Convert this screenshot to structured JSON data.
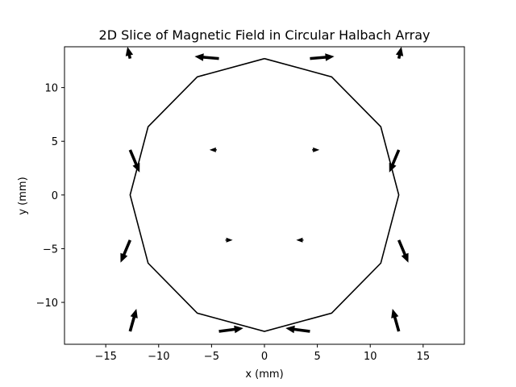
{
  "chart_data": {
    "type": "quiver",
    "title": "2D Slice of Magnetic Field in Circular Halbach Array",
    "xlabel": "x (mm)",
    "ylabel": "y (mm)",
    "xlim": [
      -18.9,
      18.9
    ],
    "ylim": [
      -13.9,
      13.8
    ],
    "xticks": [
      -15,
      -10,
      -5,
      0,
      5,
      10,
      15
    ],
    "yticks": [
      -10,
      -5,
      0,
      5,
      10
    ],
    "grid": false,
    "polygon": {
      "x": [
        0,
        6.35,
        11.0,
        12.7,
        11.0,
        6.35,
        0,
        -6.35,
        -11.0,
        -12.7,
        -11.0,
        -6.35,
        0
      ],
      "y": [
        12.7,
        11.0,
        6.35,
        0,
        -6.35,
        -11.0,
        -12.7,
        -11.0,
        -6.35,
        0,
        6.35,
        11.0,
        12.7
      ]
    },
    "outer_arrows": [
      {
        "x": 12.7,
        "y": 12.7,
        "u": 0.25,
        "v": 1.1
      },
      {
        "x": 4.3,
        "y": 12.7,
        "u": 2.3,
        "v": 0.2
      },
      {
        "x": -4.3,
        "y": 12.7,
        "u": -2.3,
        "v": 0.2
      },
      {
        "x": -12.7,
        "y": 12.7,
        "u": -0.25,
        "v": 1.1
      },
      {
        "x": -12.7,
        "y": 4.2,
        "u": 0.9,
        "v": -2.1
      },
      {
        "x": -12.7,
        "y": -4.2,
        "u": -0.9,
        "v": -2.1
      },
      {
        "x": -12.7,
        "y": -12.7,
        "u": 0.6,
        "v": 2.1
      },
      {
        "x": -4.3,
        "y": -12.7,
        "u": 2.3,
        "v": 0.3
      },
      {
        "x": 4.3,
        "y": -12.7,
        "u": -2.3,
        "v": 0.3
      },
      {
        "x": 12.7,
        "y": -12.7,
        "u": -0.6,
        "v": 2.1
      },
      {
        "x": 12.7,
        "y": -4.2,
        "u": 0.9,
        "v": -2.1
      },
      {
        "x": 12.7,
        "y": 4.2,
        "u": -0.9,
        "v": -2.1
      }
    ],
    "inner_arrows": [
      {
        "x": -4.5,
        "y": 4.2,
        "u": -0.7,
        "v": 0
      },
      {
        "x": 4.5,
        "y": 4.2,
        "u": 0.7,
        "v": 0
      },
      {
        "x": -3.7,
        "y": -4.2,
        "u": 0.7,
        "v": 0
      },
      {
        "x": 3.7,
        "y": -4.2,
        "u": -0.7,
        "v": 0
      }
    ]
  }
}
